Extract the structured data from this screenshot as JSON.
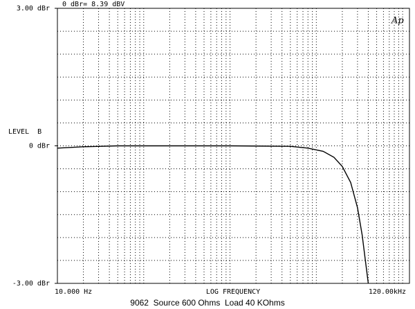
{
  "chart_data": {
    "type": "line",
    "title": "9062  Source 600 Ohms  Load 40 KOhms",
    "annotation": "0 dBr= 8.39 dBV",
    "logo": "Ap",
    "y_label": "LEVEL  B",
    "x_label": "LOG FREQUENCY",
    "log_x": true,
    "xlim": [
      10,
      120000
    ],
    "ylim": [
      -3,
      3
    ],
    "xticks": [
      {
        "value": 10,
        "label": "10.000 Hz"
      },
      {
        "value": 120000,
        "label": "120.00kHz"
      }
    ],
    "yticks": [
      {
        "value": 3,
        "label": "3.00 dBr"
      },
      {
        "value": 0,
        "label": "0 dBr"
      },
      {
        "value": -3,
        "label": "-3.00 dBr"
      }
    ],
    "x_grid": [
      20,
      30,
      40,
      50,
      60,
      70,
      80,
      90,
      100,
      200,
      300,
      400,
      500,
      600,
      700,
      800,
      900,
      1000,
      2000,
      3000,
      4000,
      5000,
      6000,
      7000,
      8000,
      9000,
      10000,
      20000,
      30000,
      40000,
      50000,
      60000,
      70000,
      80000,
      90000,
      100000
    ],
    "y_grid": [
      -2.5,
      -2,
      -1.5,
      -1,
      -0.5,
      0,
      0.5,
      1,
      1.5,
      2,
      2.5
    ],
    "grid": true,
    "series": [
      {
        "color": "#000000",
        "x": [
          10,
          20,
          50,
          100,
          1000,
          5000,
          8000,
          12000,
          16000,
          20000,
          25000,
          30000,
          34000,
          37000,
          40000
        ],
        "values": [
          -0.05,
          -0.02,
          0,
          0,
          0,
          -0.01,
          -0.05,
          -0.12,
          -0.25,
          -0.45,
          -0.8,
          -1.35,
          -1.95,
          -2.5,
          -3.0
        ]
      }
    ]
  }
}
